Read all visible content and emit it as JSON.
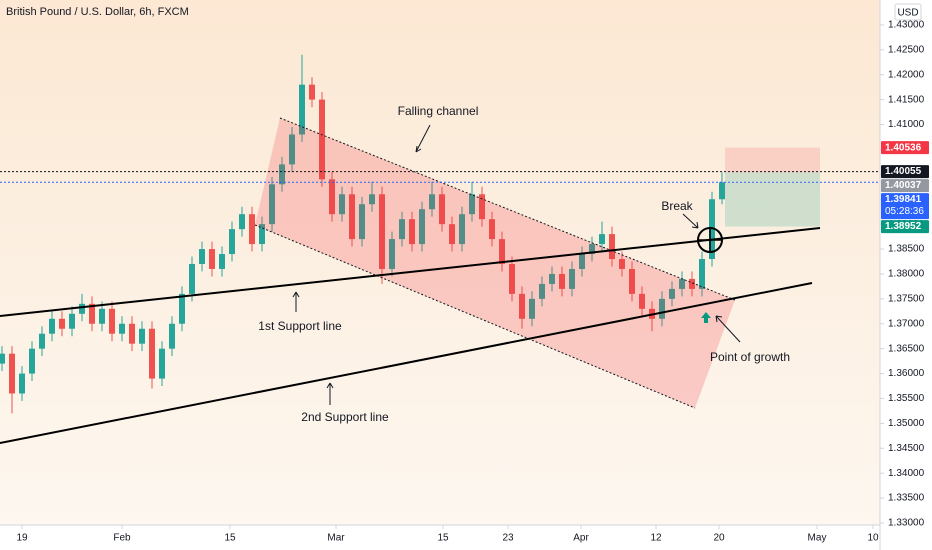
{
  "chart_data": {
    "type": "candlestick",
    "title": "British Pound / U.S. Dollar, 6h, FXCM",
    "currency": "USD",
    "up_color": "#26a69a",
    "down_color": "#ef5350",
    "x": [
      0,
      1,
      2,
      3,
      4,
      5,
      6,
      7,
      8,
      9,
      10,
      11,
      12,
      13,
      14,
      15,
      16,
      17,
      18,
      19,
      20,
      21,
      22,
      23,
      24,
      25,
      26,
      27,
      28,
      29,
      30,
      31,
      32,
      33,
      34,
      35,
      36,
      37,
      38,
      39,
      40,
      41,
      42,
      43,
      44,
      45,
      46,
      47,
      48,
      49,
      50,
      51,
      52,
      53,
      54,
      55,
      56,
      57,
      58,
      59,
      60,
      61,
      62,
      63,
      64,
      65,
      66,
      67,
      68,
      69,
      70,
      71,
      72
    ],
    "open": [
      1.362,
      1.364,
      1.356,
      1.36,
      1.365,
      1.368,
      1.371,
      1.369,
      1.372,
      1.374,
      1.37,
      1.373,
      1.368,
      1.37,
      1.366,
      1.369,
      1.359,
      1.365,
      1.37,
      1.376,
      1.382,
      1.385,
      1.381,
      1.384,
      1.389,
      1.392,
      1.386,
      1.39,
      1.398,
      1.402,
      1.408,
      1.418,
      1.415,
      1.399,
      1.392,
      1.396,
      1.387,
      1.394,
      1.396,
      1.381,
      1.387,
      1.391,
      1.386,
      1.393,
      1.396,
      1.39,
      1.386,
      1.392,
      1.396,
      1.391,
      1.387,
      1.382,
      1.376,
      1.371,
      1.375,
      1.378,
      1.38,
      1.377,
      1.381,
      1.384,
      1.386,
      1.388,
      1.383,
      1.381,
      1.376,
      1.373,
      1.371,
      1.375,
      1.377,
      1.379,
      1.377,
      1.383,
      1.395
    ],
    "high": [
      1.3655,
      1.3655,
      1.3615,
      1.3665,
      1.3695,
      1.3725,
      1.3725,
      1.3735,
      1.376,
      1.3755,
      1.3745,
      1.3745,
      1.3715,
      1.3715,
      1.3705,
      1.3705,
      1.3665,
      1.3715,
      1.3775,
      1.3835,
      1.3865,
      1.3865,
      1.3855,
      1.3905,
      1.3935,
      1.3935,
      1.3915,
      1.3995,
      1.4035,
      1.4095,
      1.424,
      1.4195,
      1.4165,
      1.4005,
      1.3975,
      1.3975,
      1.3955,
      1.3985,
      1.3975,
      1.3885,
      1.3925,
      1.3925,
      1.3945,
      1.3985,
      1.3975,
      1.3915,
      1.3935,
      1.3985,
      1.3975,
      1.3925,
      1.3885,
      1.3835,
      1.3775,
      1.3765,
      1.3795,
      1.3815,
      1.3815,
      1.3825,
      1.3855,
      1.3875,
      1.3905,
      1.3895,
      1.3845,
      1.3825,
      1.3775,
      1.3745,
      1.3765,
      1.3785,
      1.3805,
      1.3805,
      1.3845,
      1.3965,
      1.4004
    ],
    "low": [
      1.3605,
      1.352,
      1.3545,
      1.3585,
      1.3635,
      1.3665,
      1.3675,
      1.3675,
      1.3705,
      1.3685,
      1.3685,
      1.3665,
      1.3665,
      1.3645,
      1.3645,
      1.357,
      1.3575,
      1.3635,
      1.3685,
      1.3745,
      1.3805,
      1.3795,
      1.3795,
      1.3825,
      1.3875,
      1.3845,
      1.3845,
      1.3885,
      1.3965,
      1.4005,
      1.4065,
      1.4135,
      1.3975,
      1.3905,
      1.3905,
      1.3855,
      1.3855,
      1.3925,
      1.378,
      1.3795,
      1.3855,
      1.3845,
      1.3845,
      1.3915,
      1.3885,
      1.3845,
      1.3845,
      1.3905,
      1.3895,
      1.3855,
      1.3805,
      1.3745,
      1.369,
      1.3695,
      1.3735,
      1.3765,
      1.3755,
      1.3755,
      1.3795,
      1.3825,
      1.3845,
      1.3815,
      1.3795,
      1.3745,
      1.3715,
      1.3685,
      1.3695,
      1.3735,
      1.3755,
      1.3755,
      1.3755,
      1.3815,
      1.394
    ],
    "close": [
      1.364,
      1.356,
      1.36,
      1.365,
      1.368,
      1.371,
      1.369,
      1.372,
      1.374,
      1.37,
      1.373,
      1.368,
      1.37,
      1.366,
      1.369,
      1.359,
      1.365,
      1.37,
      1.376,
      1.382,
      1.385,
      1.381,
      1.384,
      1.389,
      1.392,
      1.386,
      1.39,
      1.398,
      1.402,
      1.408,
      1.418,
      1.415,
      1.399,
      1.392,
      1.396,
      1.387,
      1.394,
      1.396,
      1.381,
      1.387,
      1.391,
      1.386,
      1.393,
      1.396,
      1.39,
      1.386,
      1.392,
      1.396,
      1.391,
      1.387,
      1.382,
      1.376,
      1.371,
      1.375,
      1.378,
      1.38,
      1.377,
      1.381,
      1.384,
      1.386,
      1.388,
      1.383,
      1.381,
      1.376,
      1.373,
      1.371,
      1.375,
      1.377,
      1.379,
      1.377,
      1.383,
      1.395,
      1.3984
    ],
    "xlim": [
      -0.2,
      87.8
    ],
    "xticks": [
      {
        "value": 2,
        "label": "19"
      },
      {
        "value": 12,
        "label": "Feb"
      },
      {
        "value": 22.8,
        "label": "15"
      },
      {
        "value": 33.4,
        "label": "Mar"
      },
      {
        "value": 44.1,
        "label": "15"
      },
      {
        "value": 50.6,
        "label": "23"
      },
      {
        "value": 57.9,
        "label": "Apr"
      },
      {
        "value": 65.4,
        "label": "12"
      },
      {
        "value": 71.7,
        "label": "20"
      },
      {
        "value": 81.5,
        "label": "May"
      },
      {
        "value": 87.1,
        "label": "10"
      }
    ],
    "ylim": [
      1.3296,
      1.435
    ],
    "yticks": [
      {
        "value": 1.43,
        "label": "1.43000"
      },
      {
        "value": 1.425,
        "label": "1.42500"
      },
      {
        "value": 1.42,
        "label": "1.42000"
      },
      {
        "value": 1.415,
        "label": "1.41500"
      },
      {
        "value": 1.41,
        "label": "1.41000"
      },
      {
        "value": 1.405,
        "label": "1.40500"
      },
      {
        "value": 1.4,
        "label": "1.40000"
      },
      {
        "value": 1.395,
        "label": "1.39500"
      },
      {
        "value": 1.39,
        "label": "1.39000"
      },
      {
        "value": 1.385,
        "label": "1.38500"
      },
      {
        "value": 1.38,
        "label": "1.38000"
      },
      {
        "value": 1.375,
        "label": "1.37500"
      },
      {
        "value": 1.37,
        "label": "1.37000"
      },
      {
        "value": 1.365,
        "label": "1.36500"
      },
      {
        "value": 1.36,
        "label": "1.36000"
      },
      {
        "value": 1.355,
        "label": "1.35500"
      },
      {
        "value": 1.35,
        "label": "1.35000"
      },
      {
        "value": 1.345,
        "label": "1.34500"
      },
      {
        "value": 1.34,
        "label": "1.34000"
      },
      {
        "value": 1.335,
        "label": "1.33500"
      },
      {
        "value": 1.33,
        "label": "1.33000"
      }
    ],
    "price_labels": [
      {
        "value": 1.40536,
        "label": "1.40536",
        "color": "#f23645"
      },
      {
        "value": 1.40055,
        "label": "1.40055",
        "color": "#131722",
        "line": true
      },
      {
        "value": 1.40037,
        "label": "1.40037",
        "color": "#9598a1"
      },
      {
        "value": 1.39841,
        "label": "1.39841",
        "color": "#2962ff",
        "countdown": "05:28:36",
        "line": true
      },
      {
        "value": 1.38952,
        "label": "1.38952",
        "color": "#089981"
      }
    ],
    "annotations": [
      "Falling channel",
      "Break",
      "1st Support line",
      "2nd Support line",
      "Point of growth"
    ]
  }
}
